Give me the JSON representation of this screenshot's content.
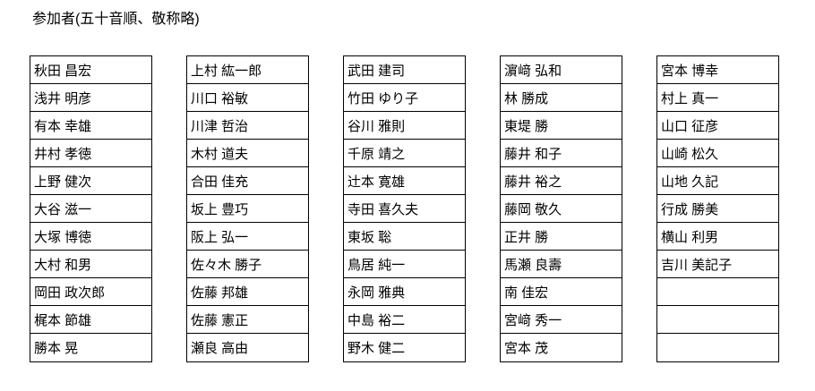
{
  "title": "参加者(五十音順、敬称略)",
  "colors": {
    "text": "#000000",
    "border": "#000000",
    "background": "#ffffff"
  },
  "columns": [
    {
      "names": [
        "秋田 昌宏",
        "浅井 明彦",
        "有本 幸雄",
        "井村 孝徳",
        "上野 健次",
        "大谷 滋一",
        "大塚 博徳",
        "大村 和男",
        "岡田 政次郎",
        "梶本 節雄",
        "勝本 晃"
      ]
    },
    {
      "names": [
        "上村 紘一郎",
        "川口 裕敏",
        "川津 哲治",
        "木村 道夫",
        "合田 佳充",
        "坂上 豊巧",
        "阪上 弘一",
        "佐々木 勝子",
        "佐藤 邦雄",
        "佐藤 憲正",
        "瀬良 高由"
      ]
    },
    {
      "names": [
        "武田 建司",
        "竹田 ゆり子",
        "谷川 雅則",
        "千原 靖之",
        "辻本 寛雄",
        "寺田 喜久夫",
        "東坂 聡",
        "鳥居 純一",
        "永岡 雅典",
        "中島 裕二",
        "野木 健二"
      ]
    },
    {
      "names": [
        "濵﨑 弘和",
        "林 勝成",
        "東堤 勝",
        "藤井 和子",
        "藤井 裕之",
        "藤岡 敬久",
        "正井 勝",
        "馬瀬 良壽",
        "南 佳宏",
        "宮﨑 秀一",
        "宮本 茂"
      ]
    },
    {
      "names": [
        "宮本 博幸",
        "村上 真一",
        "山口 征彦",
        "山崎 松久",
        "山地 久記",
        "行成 勝美",
        "横山 利男",
        "吉川 美記子",
        "",
        "",
        ""
      ]
    }
  ]
}
